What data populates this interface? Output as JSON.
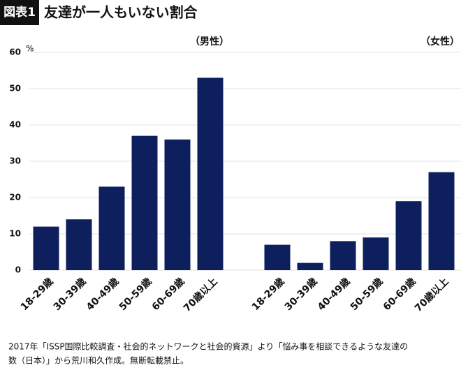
{
  "chart_data": {
    "type": "bar",
    "badge": "図表1",
    "title": "友達が一人もいない割合",
    "unit": "%",
    "color": "#0d1f5c",
    "groups": [
      {
        "label": "（男性）",
        "categories": [
          "18-29歳",
          "30-39歳",
          "40-49歳",
          "50-59歳",
          "60-69歳",
          "70歳以上"
        ],
        "values": [
          12,
          14,
          23,
          37,
          36,
          53
        ]
      },
      {
        "label": "（女性）",
        "categories": [
          "18-29歳",
          "30-39歳",
          "40-49歳",
          "50-59歳",
          "60-69歳",
          "70歳以上"
        ],
        "values": [
          7,
          2,
          8,
          9,
          19,
          27
        ]
      }
    ],
    "ylim": [
      0,
      60
    ],
    "yticks": [
      0,
      10,
      20,
      30,
      40,
      50,
      60
    ],
    "grid": true,
    "note_lines": [
      "2017年「ISSP国際比較調査・社会的ネットワークと社会的資源」より「悩み事を相談できるような友達の",
      "数（日本）」から荒川和久作成。無断転載禁止。"
    ]
  }
}
